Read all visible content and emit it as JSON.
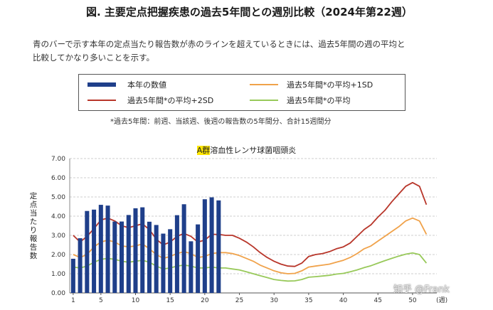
{
  "header": {
    "title": "図. 主要定点把握疾患の過去5年間との週別比較（2024年第22週）",
    "desc_line1": "青のバーで示す本年の定点当たり報告数が赤のラインを超えているときには、過去5年間の週の平均と",
    "desc_line2": "比較してかなり多いことを示す。"
  },
  "legend": {
    "this_year": "本年の数値",
    "plus1sd": "過去5年間*の平均+1SD",
    "plus2sd": "過去5年間*の平均+2SD",
    "mean": "過去5年間*の平均"
  },
  "footnote": "*過去5年間：前週、当該週、後週の報告数の5年間分、合計15週間分",
  "watermark": "知乎 @Frank",
  "colors": {
    "bar": "#1f3f8a",
    "plus2sd": "#b8362a",
    "plus1sd": "#f0a24a",
    "mean": "#98c95a",
    "grid": "#cfcfcf"
  },
  "chart_data": {
    "type": "bar",
    "title_highlight": "A群",
    "title_rest": "溶血性レンサ球菌咽頭炎",
    "ylabel": "定点当たり報告数",
    "xunit": "(週)",
    "ylim": [
      0,
      7
    ],
    "yticks": [
      "0.00",
      "1.00",
      "2.00",
      "3.00",
      "4.00",
      "5.00",
      "6.00",
      "7.00"
    ],
    "xticks": [
      1,
      5,
      10,
      15,
      20,
      25,
      30,
      35,
      40,
      45,
      50
    ],
    "x_max": 53,
    "series": [
      {
        "name": "本年の数値",
        "type": "bar",
        "x": [
          1,
          2,
          3,
          4,
          5,
          6,
          7,
          8,
          9,
          10,
          11,
          12,
          13,
          14,
          15,
          16,
          17,
          18,
          19,
          20,
          21,
          22
        ],
        "values": [
          1.78,
          2.85,
          4.27,
          4.34,
          4.59,
          4.55,
          3.72,
          3.72,
          4.06,
          4.41,
          4.46,
          3.71,
          3.54,
          3.09,
          3.32,
          4.05,
          4.62,
          2.69,
          3.57,
          4.88,
          4.98,
          4.82
        ]
      },
      {
        "name": "過去5年間*の平均+2SD",
        "type": "line",
        "points": [
          [
            1,
            3.0
          ],
          [
            2,
            2.65
          ],
          [
            3,
            2.95
          ],
          [
            4,
            3.35
          ],
          [
            5,
            3.8
          ],
          [
            6,
            3.9
          ],
          [
            7,
            3.75
          ],
          [
            8,
            3.5
          ],
          [
            9,
            3.4
          ],
          [
            10,
            3.5
          ],
          [
            11,
            3.6
          ],
          [
            12,
            3.3
          ],
          [
            13,
            2.8
          ],
          [
            14,
            2.5
          ],
          [
            15,
            2.65
          ],
          [
            16,
            2.95
          ],
          [
            17,
            3.1
          ],
          [
            18,
            2.95
          ],
          [
            19,
            2.65
          ],
          [
            20,
            2.75
          ],
          [
            21,
            3.05
          ],
          [
            22,
            3.05
          ],
          [
            23,
            3.0
          ],
          [
            24,
            3.0
          ],
          [
            25,
            2.85
          ],
          [
            26,
            2.65
          ],
          [
            27,
            2.4
          ],
          [
            28,
            2.1
          ],
          [
            29,
            1.85
          ],
          [
            30,
            1.65
          ],
          [
            31,
            1.5
          ],
          [
            32,
            1.4
          ],
          [
            33,
            1.38
          ],
          [
            34,
            1.55
          ],
          [
            35,
            1.9
          ],
          [
            36,
            2.0
          ],
          [
            37,
            2.05
          ],
          [
            38,
            2.15
          ],
          [
            39,
            2.3
          ],
          [
            40,
            2.4
          ],
          [
            41,
            2.6
          ],
          [
            42,
            2.95
          ],
          [
            43,
            3.3
          ],
          [
            44,
            3.55
          ],
          [
            45,
            3.95
          ],
          [
            46,
            4.3
          ],
          [
            47,
            4.75
          ],
          [
            48,
            5.15
          ],
          [
            49,
            5.55
          ],
          [
            50,
            5.75
          ],
          [
            51,
            5.55
          ],
          [
            52,
            4.6
          ]
        ]
      },
      {
        "name": "過去5年間*の平均+1SD",
        "type": "line",
        "points": [
          [
            1,
            2.0
          ],
          [
            2,
            1.85
          ],
          [
            3,
            2.0
          ],
          [
            4,
            2.4
          ],
          [
            5,
            2.65
          ],
          [
            6,
            2.75
          ],
          [
            7,
            2.65
          ],
          [
            8,
            2.45
          ],
          [
            9,
            2.4
          ],
          [
            10,
            2.45
          ],
          [
            11,
            2.55
          ],
          [
            12,
            2.3
          ],
          [
            13,
            2.0
          ],
          [
            14,
            1.8
          ],
          [
            15,
            1.9
          ],
          [
            16,
            2.05
          ],
          [
            17,
            2.15
          ],
          [
            18,
            2.05
          ],
          [
            19,
            1.85
          ],
          [
            20,
            1.9
          ],
          [
            21,
            2.05
          ],
          [
            22,
            2.1
          ],
          [
            23,
            2.1
          ],
          [
            24,
            2.05
          ],
          [
            25,
            1.95
          ],
          [
            26,
            1.8
          ],
          [
            27,
            1.65
          ],
          [
            28,
            1.45
          ],
          [
            29,
            1.3
          ],
          [
            30,
            1.15
          ],
          [
            31,
            1.05
          ],
          [
            32,
            1.0
          ],
          [
            33,
            1.02
          ],
          [
            34,
            1.15
          ],
          [
            35,
            1.35
          ],
          [
            36,
            1.4
          ],
          [
            37,
            1.45
          ],
          [
            38,
            1.5
          ],
          [
            39,
            1.6
          ],
          [
            40,
            1.7
          ],
          [
            41,
            1.85
          ],
          [
            42,
            2.05
          ],
          [
            43,
            2.3
          ],
          [
            44,
            2.45
          ],
          [
            45,
            2.7
          ],
          [
            46,
            2.95
          ],
          [
            47,
            3.2
          ],
          [
            48,
            3.45
          ],
          [
            49,
            3.75
          ],
          [
            50,
            3.9
          ],
          [
            51,
            3.75
          ],
          [
            52,
            3.05
          ]
        ]
      },
      {
        "name": "過去5年間*の平均",
        "type": "line",
        "points": [
          [
            1,
            1.35
          ],
          [
            2,
            1.3
          ],
          [
            3,
            1.4
          ],
          [
            4,
            1.6
          ],
          [
            5,
            1.75
          ],
          [
            6,
            1.8
          ],
          [
            7,
            1.75
          ],
          [
            8,
            1.65
          ],
          [
            9,
            1.6
          ],
          [
            10,
            1.65
          ],
          [
            11,
            1.7
          ],
          [
            12,
            1.6
          ],
          [
            13,
            1.4
          ],
          [
            14,
            1.25
          ],
          [
            15,
            1.3
          ],
          [
            16,
            1.4
          ],
          [
            17,
            1.45
          ],
          [
            18,
            1.4
          ],
          [
            19,
            1.3
          ],
          [
            20,
            1.3
          ],
          [
            21,
            1.35
          ],
          [
            22,
            1.3
          ],
          [
            23,
            1.3
          ],
          [
            24,
            1.25
          ],
          [
            25,
            1.2
          ],
          [
            26,
            1.1
          ],
          [
            27,
            1.0
          ],
          [
            28,
            0.9
          ],
          [
            29,
            0.8
          ],
          [
            30,
            0.7
          ],
          [
            31,
            0.65
          ],
          [
            32,
            0.62
          ],
          [
            33,
            0.63
          ],
          [
            34,
            0.7
          ],
          [
            35,
            0.82
          ],
          [
            36,
            0.85
          ],
          [
            37,
            0.88
          ],
          [
            38,
            0.92
          ],
          [
            39,
            0.98
          ],
          [
            40,
            1.02
          ],
          [
            41,
            1.1
          ],
          [
            42,
            1.2
          ],
          [
            43,
            1.32
          ],
          [
            44,
            1.42
          ],
          [
            45,
            1.55
          ],
          [
            46,
            1.68
          ],
          [
            47,
            1.8
          ],
          [
            48,
            1.92
          ],
          [
            49,
            2.02
          ],
          [
            50,
            2.08
          ],
          [
            51,
            2.0
          ],
          [
            52,
            1.55
          ]
        ]
      }
    ]
  }
}
